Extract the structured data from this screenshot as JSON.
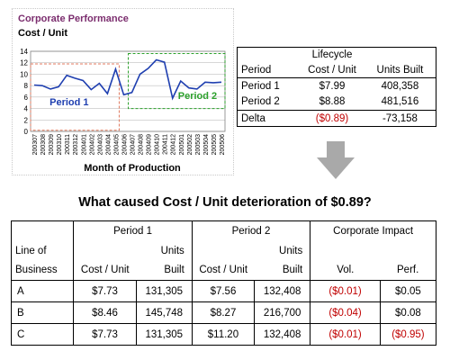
{
  "chart_data": {
    "type": "line",
    "title": "Corporate Performance",
    "ylabel": "Cost / Unit",
    "xlabel": "Month of Production",
    "ylim": [
      0,
      14
    ],
    "yticks": [
      0,
      2,
      4,
      6,
      8,
      10,
      12,
      14
    ],
    "categories": [
      "200307",
      "200308",
      "200309",
      "200310",
      "200311",
      "200312",
      "200401",
      "200402",
      "200403",
      "200404",
      "200405",
      "200406",
      "200407",
      "200408",
      "200409",
      "200410",
      "200411",
      "200412",
      "200501",
      "200502",
      "200503",
      "200504",
      "200505",
      "200506"
    ],
    "values": [
      8.1,
      8.0,
      7.4,
      7.8,
      9.8,
      9.3,
      8.9,
      7.3,
      8.4,
      6.6,
      10.9,
      6.4,
      6.8,
      10.0,
      11.0,
      12.5,
      12.1,
      5.8,
      8.8,
      7.6,
      7.4,
      8.6,
      8.5,
      8.6
    ],
    "annotations": [
      {
        "label": "Period 1",
        "color": "#1f3fb0"
      },
      {
        "label": "Period 2",
        "color": "#2ca02c"
      }
    ],
    "colors": {
      "line": "#1f3fb0",
      "title": "#7b2d6e",
      "period1_box": "#e07a5f",
      "period2_box": "#2ca02c",
      "grid": "#bfbfbf"
    }
  },
  "summary": {
    "header_top": [
      "",
      "Lifecycle",
      ""
    ],
    "header": [
      "Period",
      "Cost / Unit",
      "Units Built"
    ],
    "rows": [
      [
        "Period 1",
        "$7.99",
        "408,358"
      ],
      [
        "Period 2",
        "$8.88",
        "481,516"
      ],
      [
        "Delta",
        "($0.89)",
        "-73,158"
      ]
    ]
  },
  "question": "What caused Cost / Unit deterioration of $0.89?",
  "impact": {
    "group_headers": [
      "Period 1",
      "Period 2",
      "Corporate Impact"
    ],
    "sub_top": [
      "Line of",
      "",
      "Units",
      "",
      "Units",
      "",
      ""
    ],
    "sub_bottom": [
      "Business",
      "Cost / Unit",
      "Built",
      "Cost / Unit",
      "Built",
      "Vol.",
      "Perf."
    ],
    "rows": [
      [
        "A",
        "$7.73",
        "131,305",
        "$7.56",
        "132,408",
        "($0.01)",
        "$0.05"
      ],
      [
        "B",
        "$8.46",
        "145,748",
        "$8.27",
        "216,700",
        "($0.04)",
        "$0.08"
      ],
      [
        "C",
        "$7.73",
        "131,305",
        "$11.20",
        "132,408",
        "($0.01)",
        "($0.95)"
      ]
    ]
  }
}
